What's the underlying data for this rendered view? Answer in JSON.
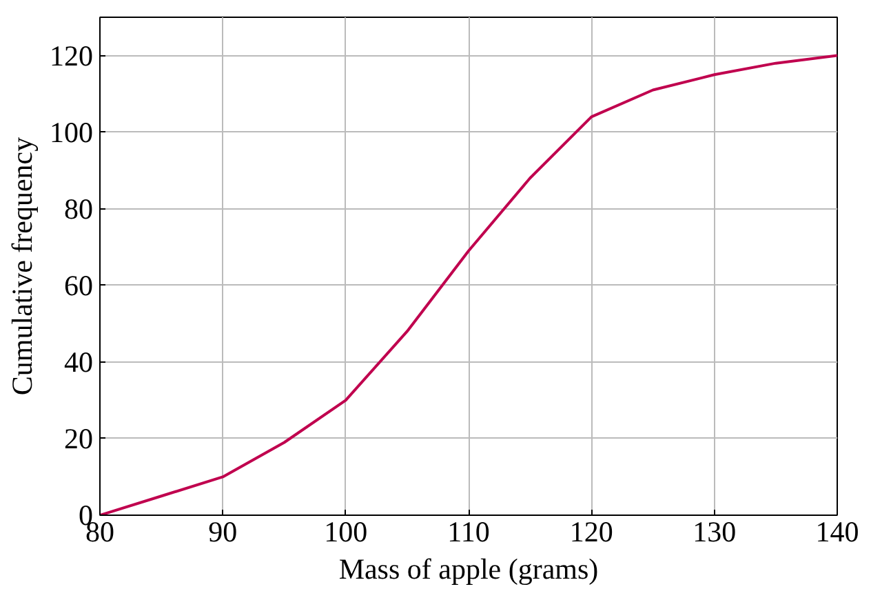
{
  "chart_data": {
    "type": "line",
    "xlabel": "Mass of apple (grams)",
    "ylabel": "Cumulative frequency",
    "x": [
      80,
      85,
      90,
      95,
      100,
      105,
      110,
      115,
      120,
      125,
      130,
      135,
      140
    ],
    "series": [
      {
        "color": "#c0004e",
        "values": [
          0,
          5,
          10,
          19,
          30,
          48,
          69,
          88,
          104,
          111,
          115,
          118,
          120
        ]
      }
    ],
    "xlim": [
      80,
      140
    ],
    "ylim": [
      0,
      130
    ],
    "xticks": [
      80,
      90,
      100,
      110,
      120,
      130,
      140
    ],
    "yticks": [
      0,
      20,
      40,
      60,
      80,
      100,
      120
    ],
    "grid": true,
    "marker": "none",
    "line_style": "solid"
  }
}
